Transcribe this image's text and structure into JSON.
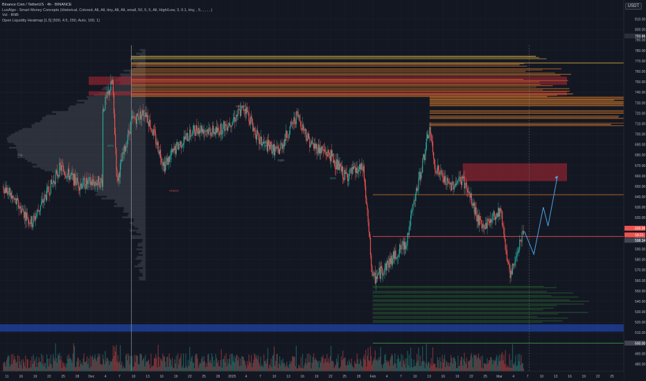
{
  "header": {
    "title": "Binance Coin / TetherUS · 4h · BINANCE",
    "indicators": [
      "LuxAlgo - Smart Money Concepts (Historical, Colored, All, All, tiny, All, All, small, 50, 5, 5, All, High/Low, 3, 0.1, tiny, , 5, , , , , )",
      "Vol · BNB",
      "Open Liquidity Heatmap [1.5] (500, 4.5, 250, Auto, 100, 1)"
    ],
    "currency": "USDT"
  },
  "price_axis": {
    "ticks": [
      "810.00",
      "800.00",
      "790.00",
      "780.00",
      "770.00",
      "760.00",
      "750.00",
      "740.00",
      "730.00",
      "720.00",
      "710.00",
      "700.00",
      "690.00",
      "680.00",
      "670.00",
      "660.00",
      "650.00",
      "640.00",
      "630.00",
      "620.00",
      "610.00",
      "600.00",
      "590.00",
      "580.00",
      "570.00",
      "560.00",
      "550.00",
      "540.00",
      "530.00",
      "520.00",
      "510.00",
      "500.00",
      "490.00",
      "480.00"
    ],
    "markers": [
      {
        "text": "793.86",
        "color": "#2a2e39"
      },
      {
        "text": "609.90",
        "color": "#ef5350"
      },
      {
        "text": "19:21",
        "color": "#ef5350"
      },
      {
        "text": "598.34",
        "color": "#434651"
      },
      {
        "text": "500.00",
        "color": "#434651"
      }
    ]
  },
  "time_axis": {
    "labels": [
      "11",
      "16",
      "19",
      "22",
      "25",
      "28",
      "Dec",
      "4",
      "7",
      "10",
      "13",
      "16",
      "19",
      "22",
      "25",
      "28",
      "2025",
      "4",
      "7",
      "10",
      "13",
      "16",
      "19",
      "22",
      "25",
      "28",
      "Feb",
      "4",
      "7",
      "10",
      "13",
      "16",
      "19",
      "22",
      "25",
      "Mar",
      "4",
      "7",
      "10",
      "13",
      "16",
      "19",
      "22",
      "25"
    ]
  },
  "annotations": [
    "EQL",
    "BOS",
    "CHoCH",
    "CHoCH",
    "CHoCH",
    "BOS",
    "EQH"
  ],
  "colors": {
    "background": "#131722",
    "up": "#26a69a",
    "down": "#ef5350",
    "supply_zone": "#b22833",
    "demand_zone": "#2962ff",
    "heat_high": "#f7c948",
    "heat_mid": "#e6812b",
    "heat_low": "#2e7d32",
    "projection": "#4fa3e3"
  },
  "chart_data": {
    "type": "candlestick",
    "pair": "BNB/USDT",
    "interval": "4h",
    "ylim": [
      475,
      815
    ],
    "price_path": [
      {
        "x": "Nov 8",
        "y": 650
      },
      {
        "x": "Nov 14",
        "y": 615
      },
      {
        "x": "Nov 20",
        "y": 668
      },
      {
        "x": "Nov 24",
        "y": 652
      },
      {
        "x": "Nov 29",
        "y": 655
      },
      {
        "x": "Dec 3",
        "y": 690
      },
      {
        "x": "Dec 4",
        "y": 782
      },
      {
        "x": "Dec 6",
        "y": 710
      },
      {
        "x": "Dec 9",
        "y": 750
      },
      {
        "x": "Dec 10",
        "y": 655
      },
      {
        "x": "Dec 13",
        "y": 712
      },
      {
        "x": "Dec 16",
        "y": 722
      },
      {
        "x": "Dec 20",
        "y": 670
      },
      {
        "x": "Dec 23",
        "y": 690
      },
      {
        "x": "Dec 27",
        "y": 706
      },
      {
        "x": "Dec 31",
        "y": 702
      },
      {
        "x": "Jan 3",
        "y": 712
      },
      {
        "x": "Jan 6",
        "y": 726
      },
      {
        "x": "Jan 9",
        "y": 693
      },
      {
        "x": "Jan 13",
        "y": 683
      },
      {
        "x": "Jan 17",
        "y": 718
      },
      {
        "x": "Jan 20",
        "y": 690
      },
      {
        "x": "Jan 24",
        "y": 680
      },
      {
        "x": "Jan 27",
        "y": 660
      },
      {
        "x": "Jan 31",
        "y": 667
      },
      {
        "x": "Feb 2",
        "y": 560
      },
      {
        "x": "Feb 5",
        "y": 575
      },
      {
        "x": "Feb 9",
        "y": 596
      },
      {
        "x": "Feb 11",
        "y": 640
      },
      {
        "x": "Feb 14",
        "y": 705
      },
      {
        "x": "Feb 15",
        "y": 670
      },
      {
        "x": "Feb 18",
        "y": 650
      },
      {
        "x": "Feb 21",
        "y": 657
      },
      {
        "x": "Feb 25",
        "y": 610
      },
      {
        "x": "Mar 1",
        "y": 628
      },
      {
        "x": "Mar 3",
        "y": 561
      },
      {
        "x": "Mar 5",
        "y": 598
      },
      {
        "x": "Mar 6",
        "y": 607
      }
    ],
    "projection": [
      {
        "x": "Mar 6",
        "y": 607
      },
      {
        "x": "Mar 8",
        "y": 585
      },
      {
        "x": "Mar 10",
        "y": 630
      },
      {
        "x": "Mar 11",
        "y": 612
      },
      {
        "x": "Mar 13",
        "y": 660
      }
    ],
    "supply_zones": [
      [
        747,
        755
      ],
      [
        737,
        741
      ],
      [
        655,
        672
      ]
    ],
    "demand_zones": [
      [
        511,
        518
      ]
    ],
    "liquidity_levels_high": [
      772,
      765,
      760,
      756,
      750,
      745,
      741,
      736,
      733,
      730,
      727,
      720,
      715,
      708
    ],
    "liquidity_levels_low": [
      553,
      548,
      544,
      540,
      536,
      532,
      528,
      524,
      520
    ],
    "horizontal_levels": [
      768,
      642,
      602,
      500
    ]
  }
}
